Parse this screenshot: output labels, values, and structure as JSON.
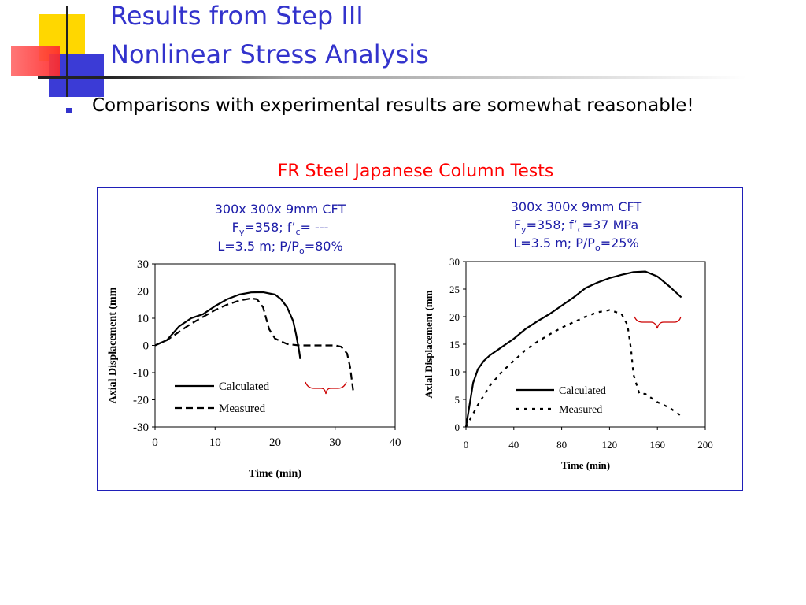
{
  "slide": {
    "title_line1": "Results from Step III",
    "title_line2": "Nonlinear Stress Analysis",
    "bullet": "Comparisons with experimental results are somewhat reasonable!",
    "figure_title": "FR Steel Japanese Column Tests",
    "colors": {
      "title": "#3333cc",
      "figure_title": "#ff0000",
      "panel_border": "#1f1fb8",
      "bracket": "#cc0000"
    }
  },
  "chart_data": [
    {
      "type": "line",
      "caption": {
        "line1": "300x 300x 9mm CFT",
        "line2_fy": "F",
        "line2_fy_sub": "y",
        "line2_rest": "=358; f’",
        "line2_fc_sub": "c",
        "line2_end": "= ---",
        "line3_start": "L=3.5 m; P/P",
        "line3_sub": "o",
        "line3_end": "=80%"
      },
      "xlabel": "Time (min)",
      "ylabel": "Axial Displacement (mm",
      "xlim": [
        0,
        40
      ],
      "ylim": [
        -30,
        30
      ],
      "xticks": [
        "0",
        "10",
        "20",
        "30",
        "40"
      ],
      "yticks": [
        "30",
        "20",
        "10",
        "0",
        "-10",
        "-20",
        "-30"
      ],
      "legend_position": "bottom-left",
      "series": [
        {
          "name": "Calculated",
          "style": "solid",
          "x": [
            0,
            2,
            4,
            6,
            8,
            10,
            12,
            14,
            16,
            18,
            20,
            21,
            22,
            23,
            23.5,
            24,
            24.2
          ],
          "y": [
            0,
            2,
            7,
            10,
            11.5,
            14.5,
            17,
            18.7,
            19.5,
            19.6,
            18.7,
            17,
            14,
            9,
            4,
            -2,
            -5
          ]
        },
        {
          "name": "Measured",
          "style": "dashed",
          "x": [
            0,
            2,
            4,
            6,
            8,
            10,
            12,
            14,
            16,
            17,
            18,
            19,
            20,
            22,
            24,
            26,
            28,
            30,
            31,
            32,
            32.5,
            33
          ],
          "y": [
            0,
            2,
            5,
            8,
            10.5,
            13,
            15,
            16.5,
            17.3,
            17,
            14,
            6,
            2.5,
            0.5,
            0,
            0,
            0,
            0,
            -0.5,
            -3,
            -8,
            -16.5
          ]
        }
      ],
      "annotation": "bracket under Measured tail"
    },
    {
      "type": "line",
      "caption": {
        "line1": "300x 300x 9mm CFT",
        "line2_fy": "F",
        "line2_fy_sub": "y",
        "line2_rest": "=358; f’",
        "line2_fc_sub": "c",
        "line2_end": "=37 MPa",
        "line3_start": "L=3.5 m; P/P",
        "line3_sub": "o",
        "line3_end": "=25%"
      },
      "xlabel": "Time (min)",
      "ylabel": "Axial Displacement (mm",
      "xlim": [
        0,
        200
      ],
      "ylim": [
        0,
        30
      ],
      "xticks": [
        "0",
        "40",
        "80",
        "120",
        "160",
        "200"
      ],
      "yticks": [
        "30",
        "25",
        "20",
        "15",
        "10",
        "5",
        "0"
      ],
      "legend_position": "bottom-right",
      "series": [
        {
          "name": "Calculated",
          "style": "solid",
          "x": [
            0,
            3,
            6,
            10,
            15,
            20,
            30,
            40,
            50,
            60,
            70,
            80,
            90,
            100,
            110,
            120,
            130,
            140,
            150,
            160,
            170,
            180
          ],
          "y": [
            0,
            4,
            8,
            10.5,
            12,
            13,
            14.5,
            16,
            17.8,
            19.2,
            20.5,
            22,
            23.5,
            25.2,
            26.2,
            27,
            27.6,
            28.1,
            28.2,
            27.3,
            25.5,
            23.5
          ]
        },
        {
          "name": "Measured",
          "style": "dotted",
          "x": [
            0,
            5,
            10,
            20,
            30,
            40,
            50,
            60,
            70,
            80,
            90,
            100,
            110,
            120,
            130,
            135,
            138,
            140,
            145,
            150,
            160,
            170,
            180
          ],
          "y": [
            0,
            2,
            4,
            7.5,
            10,
            12,
            14,
            15.5,
            16.8,
            18,
            19,
            20,
            20.8,
            21.2,
            20.5,
            18.5,
            14,
            9.5,
            6,
            6,
            4.5,
            3.5,
            2
          ]
        }
      ],
      "annotation": "bracket above Measured drop"
    }
  ]
}
